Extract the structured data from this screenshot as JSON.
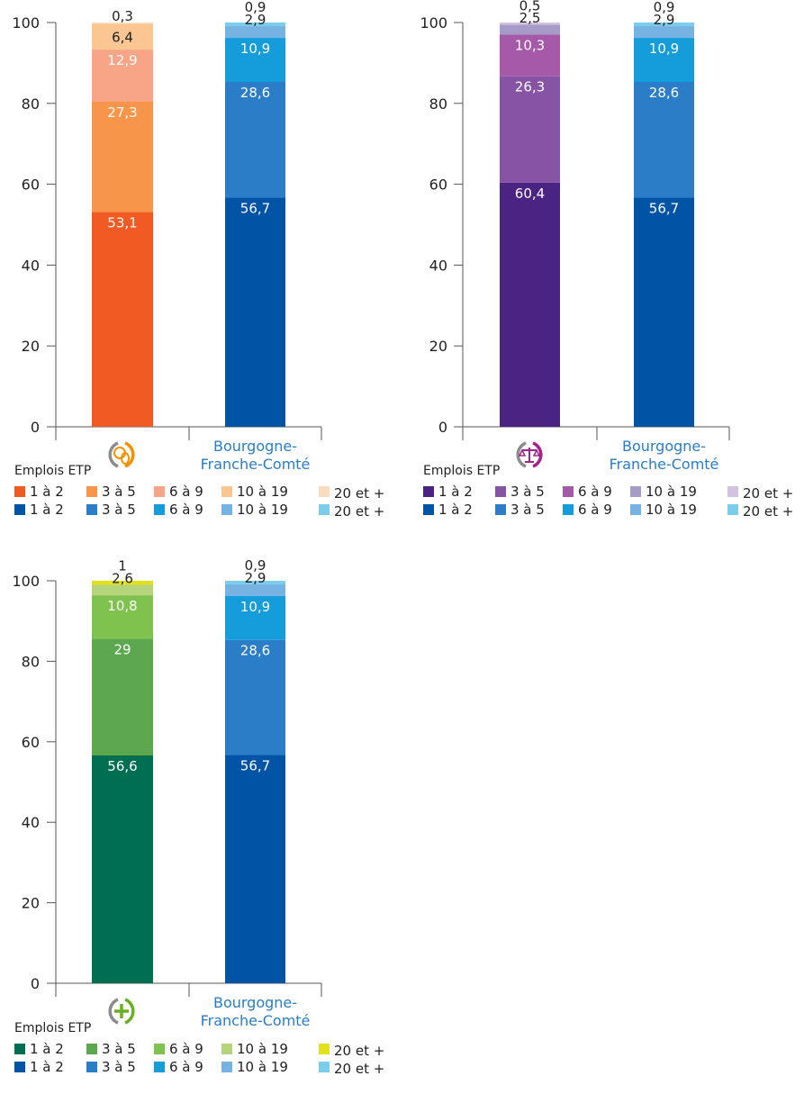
{
  "legend_title": "Emplois ETP",
  "region_label": [
    "Bourgogne-",
    "Franche-Comté"
  ],
  "categories": [
    "1 à 2",
    "3 à 5",
    "6 à 9",
    "10 à 19",
    "20 et +"
  ],
  "icons": [
    "coins-icon",
    "scales-icon",
    "plus-icon"
  ],
  "icon_colors": [
    "#F39200",
    "#A3238E",
    "#6AB023"
  ],
  "region_colors": [
    "#0053A5",
    "#2A7DC6",
    "#159CDB",
    "#76B3E3",
    "#7CCCEB"
  ],
  "chart_data": [
    {
      "type": "bar",
      "stacked": true,
      "ylim": [
        0,
        100
      ],
      "yticks": [
        0,
        20,
        40,
        60,
        80,
        100
      ],
      "categories": [
        "1 à 2",
        "3 à 5",
        "6 à 9",
        "10 à 19",
        "20 et +"
      ],
      "bars": [
        {
          "label_icon": "coins-icon",
          "values": [
            53.1,
            27.3,
            12.9,
            6.4,
            0.3
          ],
          "labels": [
            "53,1",
            "27,3",
            "12,9",
            "6,4",
            "0,3"
          ],
          "colors": [
            "#F15A22",
            "#F7954A",
            "#F8A486",
            "#FBC691",
            "#FCDCC0"
          ]
        },
        {
          "label_text": "region",
          "values": [
            56.7,
            28.6,
            10.9,
            2.9,
            0.9
          ],
          "labels": [
            "56,7",
            "28,6",
            "10,9",
            "2,9",
            "0,9"
          ],
          "colors": [
            "#0053A5",
            "#2A7DC6",
            "#159CDB",
            "#76B3E3",
            "#7CCCEB"
          ]
        }
      ]
    },
    {
      "type": "bar",
      "stacked": true,
      "ylim": [
        0,
        100
      ],
      "yticks": [
        0,
        20,
        40,
        60,
        80,
        100
      ],
      "categories": [
        "1 à 2",
        "3 à 5",
        "6 à 9",
        "10 à 19",
        "20 et +"
      ],
      "bars": [
        {
          "label_icon": "scales-icon",
          "values": [
            60.4,
            26.3,
            10.3,
            2.5,
            0.5
          ],
          "labels": [
            "60,4",
            "26,3",
            "10,3",
            "2,5",
            "0,5"
          ],
          "colors": [
            "#4A2383",
            "#8753A4",
            "#A659A9",
            "#A79CC8",
            "#D4C3E0"
          ]
        },
        {
          "label_text": "region",
          "values": [
            56.7,
            28.6,
            10.9,
            2.9,
            0.9
          ],
          "labels": [
            "56,7",
            "28,6",
            "10,9",
            "2,9",
            "0,9"
          ],
          "colors": [
            "#0053A5",
            "#2A7DC6",
            "#159CDB",
            "#76B3E3",
            "#7CCCEB"
          ]
        }
      ]
    },
    {
      "type": "bar",
      "stacked": true,
      "ylim": [
        0,
        100
      ],
      "yticks": [
        0,
        20,
        40,
        60,
        80,
        100
      ],
      "categories": [
        "1 à 2",
        "3 à 5",
        "6 à 9",
        "10 à 19",
        "20 et +"
      ],
      "bars": [
        {
          "label_icon": "plus-icon",
          "values": [
            56.6,
            29,
            10.8,
            2.6,
            1
          ],
          "labels": [
            "56,6",
            "29",
            "10,8",
            "2,6",
            "1"
          ],
          "colors": [
            "#006E51",
            "#5DA84F",
            "#7FC24E",
            "#B6D47A",
            "#E3E01E"
          ]
        },
        {
          "label_text": "region",
          "values": [
            56.7,
            28.6,
            10.9,
            2.9,
            0.9
          ],
          "labels": [
            "56,7",
            "28,6",
            "10,9",
            "2,9",
            "0,9"
          ],
          "colors": [
            "#0053A5",
            "#2A7DC6",
            "#159CDB",
            "#76B3E3",
            "#7CCCEB"
          ]
        }
      ]
    }
  ]
}
